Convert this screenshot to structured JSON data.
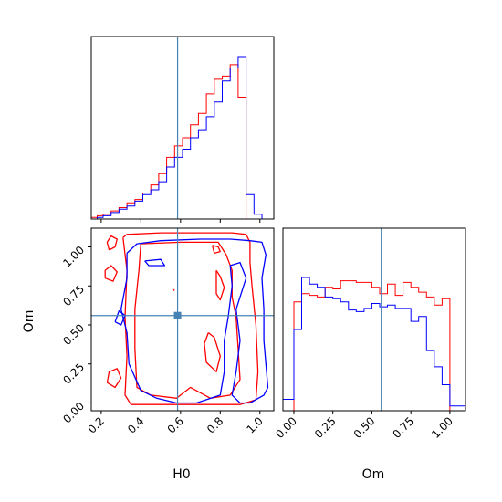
{
  "chart_data": {
    "type": "corner",
    "parameters": [
      "H0",
      "Om"
    ],
    "truth": {
      "H0": 0.585,
      "Om": 0.56
    },
    "colors": {
      "red": "#ff0000",
      "blue": "#0000ff",
      "truth": "#4682b4"
    },
    "H0_hist": {
      "range": [
        0.15,
        1.07
      ],
      "bins": [
        0.15,
        0.18,
        0.21,
        0.25,
        0.29,
        0.33,
        0.37,
        0.41,
        0.45,
        0.49,
        0.53,
        0.57,
        0.61,
        0.65,
        0.69,
        0.73,
        0.77,
        0.81,
        0.85,
        0.89,
        0.93,
        0.97,
        1.01,
        1.05,
        1.07
      ],
      "red": [
        0.01,
        0.02,
        0.03,
        0.05,
        0.07,
        0.1,
        0.12,
        0.16,
        0.21,
        0.28,
        0.38,
        0.45,
        0.5,
        0.58,
        0.65,
        0.77,
        0.86,
        0.88,
        0.95,
        0.75,
        0.0,
        0.0,
        0.0,
        0.0
      ],
      "blue": [
        0.0,
        0.01,
        0.02,
        0.04,
        0.06,
        0.08,
        0.11,
        0.15,
        0.18,
        0.23,
        0.32,
        0.38,
        0.43,
        0.5,
        0.55,
        0.63,
        0.72,
        0.85,
        0.93,
        1.0,
        0.15,
        0.03,
        0.0,
        0.0
      ]
    },
    "Om_hist": {
      "range": [
        -0.07,
        1.1
      ],
      "bins": [
        -0.07,
        0.0,
        0.05,
        0.1,
        0.15,
        0.2,
        0.25,
        0.3,
        0.35,
        0.4,
        0.45,
        0.5,
        0.55,
        0.6,
        0.65,
        0.7,
        0.75,
        0.8,
        0.85,
        0.9,
        0.95,
        1.0,
        1.05,
        1.1
      ],
      "red": [
        0.0,
        0.67,
        0.72,
        0.71,
        0.7,
        0.76,
        0.75,
        0.8,
        0.8,
        0.79,
        0.79,
        0.76,
        0.72,
        0.78,
        0.71,
        0.79,
        0.76,
        0.73,
        0.7,
        0.65,
        0.69,
        0.0,
        0.0
      ],
      "blue": [
        0.07,
        0.5,
        0.82,
        0.78,
        0.76,
        0.7,
        0.69,
        0.67,
        0.62,
        0.61,
        0.63,
        0.66,
        0.64,
        0.65,
        0.63,
        0.63,
        0.55,
        0.58,
        0.37,
        0.27,
        0.16,
        0.03,
        0.03
      ]
    },
    "joint": {
      "xlim": [
        0.15,
        1.07
      ],
      "ylim": [
        -0.05,
        1.12
      ],
      "xticks": [
        0.2,
        0.4,
        0.6,
        0.8,
        1.0
      ],
      "yticks": [
        0.0,
        0.25,
        0.5,
        0.75,
        1.0
      ],
      "contours_red": [
        [
          [
            0.31,
            1.06
          ],
          [
            0.33,
            1.08
          ],
          [
            0.5,
            1.09
          ],
          [
            0.68,
            1.09
          ],
          [
            0.86,
            1.09
          ],
          [
            0.93,
            1.08
          ],
          [
            0.95,
            1.03
          ],
          [
            0.95,
            0.9
          ],
          [
            0.96,
            0.75
          ],
          [
            0.98,
            0.5
          ],
          [
            0.99,
            0.2
          ],
          [
            0.98,
            0.02
          ],
          [
            0.9,
            -0.01
          ],
          [
            0.7,
            -0.01
          ],
          [
            0.5,
            -0.01
          ],
          [
            0.35,
            -0.01
          ],
          [
            0.32,
            0.05
          ],
          [
            0.33,
            0.3
          ],
          [
            0.32,
            0.55
          ],
          [
            0.33,
            0.85
          ],
          [
            0.31,
            1.06
          ]
        ],
        [
          [
            0.4,
            1.02
          ],
          [
            0.6,
            1.03
          ],
          [
            0.79,
            1.03
          ],
          [
            0.83,
            0.95
          ],
          [
            0.86,
            0.85
          ],
          [
            0.86,
            0.68
          ],
          [
            0.88,
            0.55
          ],
          [
            0.89,
            0.35
          ],
          [
            0.9,
            0.15
          ],
          [
            0.85,
            0.05
          ],
          [
            0.75,
            0.03
          ],
          [
            0.65,
            0.1
          ],
          [
            0.58,
            0.03
          ],
          [
            0.45,
            0.05
          ],
          [
            0.38,
            0.1
          ],
          [
            0.37,
            0.35
          ],
          [
            0.37,
            0.6
          ],
          [
            0.39,
            0.85
          ],
          [
            0.4,
            1.02
          ]
        ],
        [
          [
            0.23,
            0.13
          ],
          [
            0.27,
            0.1
          ],
          [
            0.3,
            0.16
          ],
          [
            0.28,
            0.22
          ],
          [
            0.24,
            0.2
          ],
          [
            0.23,
            0.13
          ]
        ],
        [
          [
            0.22,
            0.8
          ],
          [
            0.26,
            0.78
          ],
          [
            0.28,
            0.84
          ],
          [
            0.25,
            0.88
          ],
          [
            0.22,
            0.85
          ],
          [
            0.22,
            0.8
          ]
        ],
        [
          [
            0.24,
            0.98
          ],
          [
            0.27,
            1.0
          ],
          [
            0.28,
            1.05
          ],
          [
            0.25,
            1.07
          ],
          [
            0.23,
            1.03
          ],
          [
            0.24,
            0.98
          ]
        ],
        [
          [
            0.78,
            0.85
          ],
          [
            0.8,
            0.81
          ],
          [
            0.82,
            0.74
          ],
          [
            0.8,
            0.66
          ],
          [
            0.78,
            0.7
          ],
          [
            0.78,
            0.85
          ]
        ],
        [
          [
            0.74,
            0.45
          ],
          [
            0.77,
            0.42
          ],
          [
            0.8,
            0.3
          ],
          [
            0.78,
            0.2
          ],
          [
            0.73,
            0.26
          ],
          [
            0.72,
            0.38
          ],
          [
            0.74,
            0.45
          ]
        ],
        [
          [
            0.76,
            1.01
          ],
          [
            0.79,
            1.0
          ],
          [
            0.8,
            0.97
          ],
          [
            0.77,
            0.96
          ],
          [
            0.76,
            1.01
          ]
        ],
        [
          [
            0.56,
            0.73
          ],
          [
            0.57,
            0.72
          ]
        ]
      ],
      "contours_blue": [
        [
          [
            0.33,
            0.96
          ],
          [
            0.38,
            1.02
          ],
          [
            0.5,
            1.04
          ],
          [
            0.7,
            1.05
          ],
          [
            0.85,
            1.05
          ],
          [
            0.95,
            1.04
          ],
          [
            1.01,
            1.03
          ],
          [
            1.03,
            0.95
          ],
          [
            1.01,
            0.8
          ],
          [
            1.02,
            0.6
          ],
          [
            1.02,
            0.4
          ],
          [
            1.04,
            0.1
          ],
          [
            1.02,
            0.05
          ],
          [
            0.95,
            0.0
          ],
          [
            0.9,
            0.0
          ],
          [
            0.86,
            0.05
          ],
          [
            0.88,
            0.2
          ],
          [
            0.9,
            0.4
          ],
          [
            0.88,
            0.6
          ],
          [
            0.93,
            0.8
          ],
          [
            0.9,
            0.9
          ],
          [
            0.85,
            0.88
          ],
          [
            0.86,
            0.75
          ],
          [
            0.84,
            0.55
          ],
          [
            0.82,
            0.4
          ],
          [
            0.82,
            0.2
          ],
          [
            0.8,
            0.05
          ],
          [
            0.68,
            0.0
          ],
          [
            0.58,
            0.0
          ],
          [
            0.48,
            0.03
          ],
          [
            0.4,
            0.08
          ],
          [
            0.34,
            0.25
          ],
          [
            0.33,
            0.45
          ],
          [
            0.3,
            0.6
          ],
          [
            0.33,
            0.8
          ],
          [
            0.33,
            0.96
          ]
        ],
        [
          [
            0.42,
            0.91
          ],
          [
            0.5,
            0.92
          ],
          [
            0.52,
            0.88
          ],
          [
            0.44,
            0.88
          ],
          [
            0.42,
            0.91
          ]
        ],
        [
          [
            0.27,
            0.52
          ],
          [
            0.3,
            0.5
          ],
          [
            0.32,
            0.56
          ],
          [
            0.29,
            0.59
          ],
          [
            0.27,
            0.52
          ]
        ]
      ]
    }
  },
  "labels": {
    "x_H0": "H0",
    "x_Om": "Om",
    "y_Om": "Om"
  }
}
